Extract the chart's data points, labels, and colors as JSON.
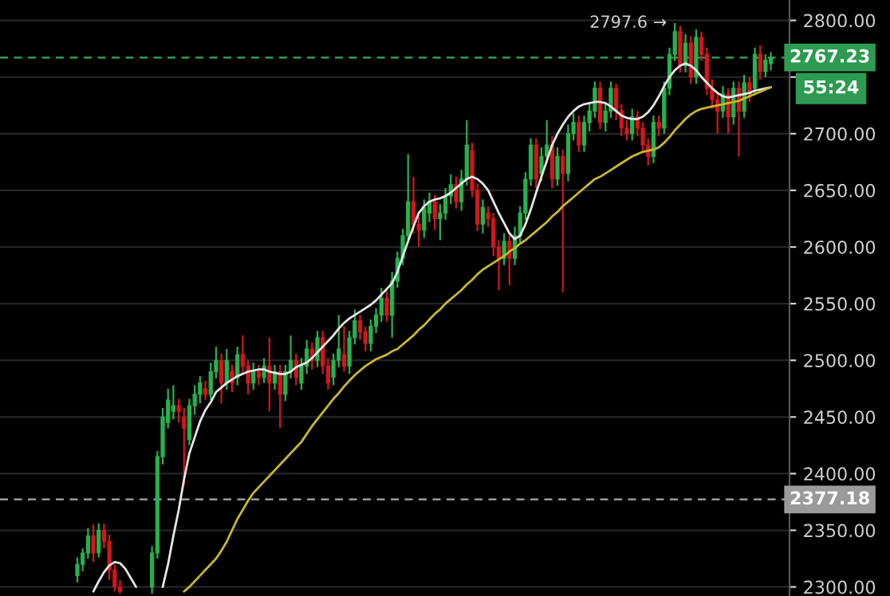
{
  "chart_data": {
    "type": "candlestick",
    "categories": [
      null,
      null,
      null,
      null,
      null,
      null,
      null,
      null,
      null,
      null,
      null,
      null,
      null,
      null,
      null,
      null,
      null,
      null,
      null,
      null,
      null,
      null,
      null,
      null,
      null,
      null,
      null,
      null,
      null,
      null,
      null,
      null,
      null,
      null,
      null,
      null,
      null,
      null,
      null,
      null,
      null,
      null,
      null,
      null,
      null,
      null,
      null,
      null,
      null,
      null,
      null,
      null,
      null,
      null,
      null,
      null,
      null,
      null,
      null,
      null,
      null,
      null,
      null,
      null,
      null,
      null,
      null,
      null,
      null,
      null,
      null,
      null,
      null,
      null,
      null,
      null,
      null,
      null,
      null,
      null,
      null,
      null,
      null,
      null,
      null,
      null,
      null,
      null,
      null,
      null,
      null,
      null,
      null,
      null,
      null,
      null,
      null,
      null,
      null,
      null,
      null,
      null,
      null,
      null,
      null,
      null,
      null,
      null,
      null,
      null,
      null,
      null,
      null,
      null,
      null,
      null,
      null,
      null,
      null,
      null,
      null,
      null,
      null,
      null,
      null,
      null,
      null,
      null,
      null,
      null,
      null,
      null,
      null,
      null,
      null,
      null,
      null,
      null,
      null,
      null,
      null,
      null,
      null,
      null,
      null,
      null,
      null,
      null
    ],
    "ohlc": [
      null,
      null,
      null,
      null,
      null,
      null,
      null,
      null,
      null,
      null,
      null,
      null,
      null,
      null,
      [
        2310,
        2326,
        2304,
        2320
      ],
      [
        2320,
        2334,
        2314,
        2330
      ],
      [
        2330,
        2352,
        2325,
        2345
      ],
      [
        2345,
        2355,
        2322,
        2330
      ],
      [
        2330,
        2356,
        2326,
        2350
      ],
      [
        2350,
        2356,
        2334,
        2340
      ],
      [
        2340,
        2346,
        2306,
        2315
      ],
      [
        2315,
        2320,
        2296,
        2300
      ],
      [
        2300,
        2306,
        2294,
        2296
      ],
      null,
      null,
      null,
      null,
      null,
      [
        2300,
        2336,
        2294,
        2330
      ],
      [
        2330,
        2420,
        2325,
        2415
      ],
      [
        2415,
        2458,
        2408,
        2450
      ],
      [
        2445,
        2475,
        2440,
        2465
      ],
      [
        2455,
        2478,
        2448,
        2460
      ],
      [
        2460,
        2466,
        2445,
        2455
      ],
      [
        2450,
        2458,
        2390,
        2440
      ],
      [
        2430,
        2466,
        2425,
        2460
      ],
      [
        2460,
        2478,
        2452,
        2470
      ],
      [
        2470,
        2486,
        2462,
        2480
      ],
      [
        2475,
        2482,
        2465,
        2470
      ],
      [
        2470,
        2498,
        2465,
        2490
      ],
      [
        2490,
        2512,
        2484,
        2500
      ],
      [
        2500,
        2506,
        2462,
        2480
      ],
      [
        2480,
        2510,
        2474,
        2500
      ],
      [
        2490,
        2496,
        2472,
        2480
      ],
      [
        2485,
        2512,
        2478,
        2505
      ],
      [
        2505,
        2522,
        2488,
        2495
      ],
      [
        2495,
        2500,
        2470,
        2480
      ],
      [
        2480,
        2498,
        2474,
        2490
      ],
      [
        2490,
        2496,
        2478,
        2485
      ],
      [
        2485,
        2502,
        2480,
        2495
      ],
      [
        2495,
        2520,
        2455,
        2480
      ],
      [
        2480,
        2496,
        2474,
        2490
      ],
      [
        2490,
        2496,
        2440,
        2470
      ],
      [
        2470,
        2496,
        2464,
        2490
      ],
      [
        2490,
        2522,
        2484,
        2500
      ],
      [
        2500,
        2506,
        2478,
        2485
      ],
      [
        2480,
        2502,
        2474,
        2495
      ],
      [
        2495,
        2518,
        2488,
        2510
      ],
      [
        2510,
        2516,
        2492,
        2500
      ],
      [
        2500,
        2526,
        2494,
        2520
      ],
      [
        2520,
        2526,
        2488,
        2495
      ],
      [
        2495,
        2502,
        2474,
        2480
      ],
      [
        2485,
        2506,
        2478,
        2500
      ],
      [
        2500,
        2540,
        2494,
        2510
      ],
      [
        2505,
        2530,
        2490,
        2495
      ],
      [
        2495,
        2526,
        2488,
        2520
      ],
      [
        2520,
        2545,
        2514,
        2535
      ],
      [
        2535,
        2540,
        2518,
        2525
      ],
      [
        2525,
        2530,
        2508,
        2515
      ],
      [
        2515,
        2536,
        2508,
        2530
      ],
      [
        2530,
        2546,
        2524,
        2540
      ],
      [
        2540,
        2564,
        2534,
        2555
      ],
      [
        2555,
        2562,
        2534,
        2540
      ],
      [
        2540,
        2578,
        2520,
        2570
      ],
      [
        2570,
        2596,
        2564,
        2590
      ],
      [
        2590,
        2616,
        2584,
        2610
      ],
      [
        2610,
        2682,
        2604,
        2640
      ],
      [
        2640,
        2662,
        2612,
        2620
      ],
      [
        2620,
        2628,
        2600,
        2615
      ],
      [
        2615,
        2642,
        2608,
        2635
      ],
      [
        2630,
        2648,
        2622,
        2640
      ],
      [
        2640,
        2646,
        2615,
        2625
      ],
      [
        2625,
        2638,
        2606,
        2630
      ],
      [
        2630,
        2652,
        2624,
        2645
      ],
      [
        2645,
        2664,
        2638,
        2655
      ],
      [
        2655,
        2662,
        2634,
        2640
      ],
      [
        2640,
        2668,
        2632,
        2660
      ],
      [
        2660,
        2712,
        2654,
        2690
      ],
      [
        2685,
        2692,
        2644,
        2650
      ],
      [
        2650,
        2656,
        2614,
        2620
      ],
      [
        2620,
        2642,
        2612,
        2635
      ],
      [
        2630,
        2636,
        2618,
        2625
      ],
      [
        2625,
        2630,
        2592,
        2600
      ],
      [
        2600,
        2606,
        2562,
        2590
      ],
      [
        2590,
        2612,
        2584,
        2605
      ],
      [
        2605,
        2610,
        2566,
        2590
      ],
      [
        2590,
        2618,
        2584,
        2610
      ],
      [
        2610,
        2636,
        2604,
        2630
      ],
      [
        2630,
        2666,
        2624,
        2660
      ],
      [
        2660,
        2696,
        2654,
        2690
      ],
      [
        2690,
        2696,
        2652,
        2660
      ],
      [
        2665,
        2688,
        2658,
        2680
      ],
      [
        2680,
        2712,
        2674,
        2690
      ],
      [
        2690,
        2698,
        2652,
        2660
      ],
      [
        2660,
        2688,
        2654,
        2680
      ],
      [
        2680,
        2686,
        2560,
        2665
      ],
      [
        2665,
        2708,
        2658,
        2700
      ],
      [
        2700,
        2718,
        2694,
        2710
      ],
      [
        2710,
        2716,
        2684,
        2690
      ],
      [
        2690,
        2716,
        2684,
        2710
      ],
      [
        2710,
        2728,
        2702,
        2720
      ],
      [
        2720,
        2746,
        2714,
        2740
      ],
      [
        2740,
        2746,
        2704,
        2710
      ],
      [
        2710,
        2726,
        2702,
        2720
      ],
      [
        2720,
        2746,
        2714,
        2740
      ],
      [
        2740,
        2744,
        2712,
        2720
      ],
      [
        2720,
        2726,
        2698,
        2705
      ],
      [
        2705,
        2712,
        2694,
        2700
      ],
      [
        2700,
        2722,
        2694,
        2715
      ],
      [
        2715,
        2720,
        2698,
        2705
      ],
      [
        2705,
        2710,
        2684,
        2690
      ],
      [
        2690,
        2696,
        2672,
        2680
      ],
      [
        2680,
        2716,
        2674,
        2710
      ],
      [
        2710,
        2716,
        2698,
        2705
      ],
      [
        2705,
        2746,
        2700,
        2740
      ],
      [
        2740,
        2776,
        2734,
        2770
      ],
      [
        2770,
        2797.6,
        2764,
        2790
      ],
      [
        2790,
        2795,
        2754,
        2760
      ],
      [
        2760,
        2788,
        2754,
        2780
      ],
      [
        2780,
        2786,
        2744,
        2750
      ],
      [
        2750,
        2792,
        2744,
        2785
      ],
      [
        2785,
        2790,
        2764,
        2770
      ],
      [
        2770,
        2776,
        2734,
        2740
      ],
      [
        2740,
        2748,
        2722,
        2730
      ],
      [
        2730,
        2736,
        2700,
        2720
      ],
      [
        2720,
        2742,
        2714,
        2735
      ],
      [
        2735,
        2740,
        2700,
        2715
      ],
      [
        2715,
        2746,
        2708,
        2740
      ],
      [
        2740,
        2746,
        2680,
        2720
      ],
      [
        2720,
        2752,
        2714,
        2745
      ],
      [
        2745,
        2750,
        2728,
        2735
      ],
      [
        2740,
        2776,
        2734,
        2770
      ],
      [
        2770,
        2778,
        2748,
        2755
      ],
      [
        2755,
        2770,
        2750,
        2765
      ],
      [
        2762,
        2772,
        2756,
        2767.23
      ],
      null,
      null,
      null
    ],
    "colors": [
      null,
      null,
      null,
      null,
      null,
      null,
      null,
      null,
      null,
      null,
      null,
      null,
      null,
      null,
      "#27b14f",
      "#27b14f",
      "#27b14f",
      "#d3161d",
      "#27b14f",
      "#d3161d",
      "#d3161d",
      "#d3161d",
      "#d3161d",
      null,
      null,
      null,
      null,
      null,
      "#27b14f",
      "#27b14f",
      "#27b14f",
      "#27b14f",
      "#27b14f",
      "#d3161d",
      "#d3161d",
      "#27b14f",
      "#27b14f",
      "#27b14f",
      "#d3161d",
      "#27b14f",
      "#27b14f",
      "#d3161d",
      "#27b14f",
      "#d3161d",
      "#27b14f",
      "#d3161d",
      "#d3161d",
      "#27b14f",
      "#d3161d",
      "#27b14f",
      "#d3161d",
      "#27b14f",
      "#d3161d",
      "#27b14f",
      "#27b14f",
      "#d3161d",
      "#27b14f",
      "#27b14f",
      "#d3161d",
      "#27b14f",
      "#d3161d",
      "#d3161d",
      "#27b14f",
      "#27b14f",
      "#d3161d",
      "#27b14f",
      "#27b14f",
      "#d3161d",
      "#d3161d",
      "#27b14f",
      "#27b14f",
      "#27b14f",
      "#d3161d",
      "#27b14f",
      "#27b14f",
      "#27b14f",
      "#27b14f",
      "#d3161d",
      "#d3161d",
      "#27b14f",
      "#27b14f",
      "#d3161d",
      "#27b14f",
      "#27b14f",
      "#27b14f",
      "#d3161d",
      "#27b14f",
      "#27b14f",
      "#d3161d",
      "#d3161d",
      "#27b14f",
      "#d3161d",
      "#d3161d",
      "#d3161d",
      "#27b14f",
      "#d3161d",
      "#27b14f",
      "#27b14f",
      "#27b14f",
      "#27b14f",
      "#d3161d",
      "#27b14f",
      "#27b14f",
      "#d3161d",
      "#27b14f",
      "#d3161d",
      "#27b14f",
      "#27b14f",
      "#d3161d",
      "#27b14f",
      "#27b14f",
      "#27b14f",
      "#d3161d",
      "#27b14f",
      "#27b14f",
      "#d3161d",
      "#d3161d",
      "#d3161d",
      "#27b14f",
      "#d3161d",
      "#d3161d",
      "#d3161d",
      "#27b14f",
      "#d3161d",
      "#27b14f",
      "#27b14f",
      "#27b14f",
      "#d3161d",
      "#27b14f",
      "#d3161d",
      "#27b14f",
      "#d3161d",
      "#d3161d",
      "#d3161d",
      "#d3161d",
      "#27b14f",
      "#d3161d",
      "#27b14f",
      "#d3161d",
      "#27b14f",
      "#d3161d",
      "#27b14f",
      "#d3161d",
      "#27b14f",
      "#27b14f",
      null,
      null,
      null
    ],
    "series": [
      {
        "type": "line",
        "color": "#e6e6e6",
        "values": [
          null,
          null,
          null,
          null,
          null,
          null,
          null,
          null,
          null,
          null,
          null,
          null,
          null,
          null,
          null,
          null,
          null,
          2296,
          2305,
          2313,
          2319,
          2322,
          2321,
          2316,
          2308,
          2300,
          null,
          null,
          null,
          null,
          2300,
          2320,
          2345,
          2368,
          2395,
          2418,
          2432,
          2446,
          2456,
          2463,
          2472,
          2476,
          2480,
          2483,
          2486,
          2488,
          2490,
          2491,
          2492,
          2492,
          2490,
          2489,
          2488,
          2488,
          2490,
          2494,
          2496,
          2498,
          2502,
          2507,
          2512,
          2517,
          2522,
          2528,
          2533,
          2537,
          2540,
          2543,
          2546,
          2549,
          2553,
          2558,
          2563,
          2568,
          2578,
          2592,
          2605,
          2618,
          2630,
          2636,
          2640,
          2642,
          2643,
          2645,
          2648,
          2652,
          2656,
          2660,
          2662,
          2660,
          2656,
          2650,
          2640,
          2630,
          2621,
          2612,
          2607,
          2610,
          2620,
          2633,
          2648,
          2662,
          2676,
          2690,
          2700,
          2708,
          2715,
          2720,
          2724,
          2726,
          2727,
          2728,
          2728,
          2727,
          2724,
          2720,
          2716,
          2714,
          2713,
          2713,
          2715,
          2719,
          2725,
          2733,
          2742,
          2750,
          2756,
          2760,
          2762,
          2760,
          2756,
          2750,
          2745,
          2740,
          2736,
          2733,
          2732,
          2733,
          2734,
          2735,
          2736,
          2738,
          2739,
          2740,
          2741,
          null,
          null,
          null
        ]
      },
      {
        "type": "line",
        "color": "#c9b82c",
        "values": [
          null,
          null,
          null,
          null,
          null,
          null,
          null,
          null,
          null,
          null,
          null,
          null,
          null,
          null,
          null,
          null,
          null,
          null,
          null,
          null,
          null,
          null,
          null,
          null,
          null,
          null,
          null,
          null,
          null,
          null,
          null,
          null,
          null,
          null,
          2296,
          2300,
          2305,
          2310,
          2315,
          2320,
          2325,
          2332,
          2340,
          2350,
          2360,
          2368,
          2376,
          2383,
          2388,
          2393,
          2398,
          2403,
          2408,
          2413,
          2418,
          2423,
          2428,
          2435,
          2442,
          2448,
          2454,
          2460,
          2466,
          2471,
          2477,
          2482,
          2487,
          2491,
          2495,
          2498,
          2501,
          2503,
          2505,
          2508,
          2510,
          2514,
          2518,
          2522,
          2527,
          2531,
          2536,
          2541,
          2545,
          2550,
          2554,
          2558,
          2562,
          2567,
          2571,
          2576,
          2580,
          2583,
          2586,
          2589,
          2592,
          2596,
          2599,
          2603,
          2606,
          2610,
          2614,
          2618,
          2622,
          2627,
          2631,
          2636,
          2640,
          2644,
          2648,
          2652,
          2656,
          2660,
          2662,
          2665,
          2668,
          2671,
          2674,
          2677,
          2680,
          2682,
          2684,
          2685,
          2686,
          2688,
          2692,
          2697,
          2703,
          2708,
          2713,
          2717,
          2720,
          2722,
          2723,
          2724,
          2725,
          2726,
          2727,
          2728,
          2729,
          2731,
          2733,
          2735,
          2737,
          2739,
          2741,
          null,
          null,
          null
        ]
      }
    ],
    "ylim": [
      2292,
      2818
    ],
    "yticks": [
      {
        "value": 2300,
        "label": "2300.00"
      },
      {
        "value": 2350,
        "label": "2350.00"
      },
      {
        "value": 2400,
        "label": "2400.00"
      },
      {
        "value": 2450,
        "label": "2450.00"
      },
      {
        "value": 2500,
        "label": "2500.00"
      },
      {
        "value": 2550,
        "label": "2550.00"
      },
      {
        "value": 2600,
        "label": "2600.00"
      },
      {
        "value": 2650,
        "label": "2650.00"
      },
      {
        "value": 2700,
        "label": "2700.00"
      },
      {
        "value": 2750,
        "label": null
      },
      {
        "value": 2800,
        "label": "2800.00"
      }
    ],
    "grid": "y",
    "ref_lines": [
      {
        "axis": "y",
        "value": 2767.23,
        "label": "2767.23",
        "color": "#2e9b52",
        "line_style": "dashed"
      },
      {
        "axis": "y",
        "value": 2377.18,
        "label": "2377.18",
        "color": "#9a9a9a",
        "line_style": "dashed"
      }
    ],
    "annotations": [
      "2797.6 →",
      "55:24"
    ]
  }
}
